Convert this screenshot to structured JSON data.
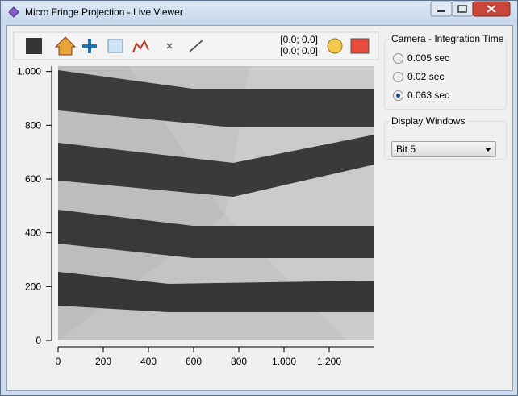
{
  "window": {
    "title": "Micro Fringe Projection - Live Viewer"
  },
  "toolbar": {
    "coords": [
      "[0.0; 0.0]",
      "[0.0; 0.0]"
    ]
  },
  "plot": {
    "xlim": [
      0,
      1400
    ],
    "ylim": [
      0,
      1020
    ],
    "xticks": [
      0,
      200,
      400,
      600,
      800,
      {
        "value": 1000,
        "label": "1.000"
      },
      {
        "value": 1200,
        "label": "1.200"
      }
    ],
    "yticks": [
      0,
      200,
      400,
      600,
      800,
      {
        "value": 1000,
        "label": "1.000"
      }
    ]
  },
  "camera_group": {
    "title": "Camera - Integration Time",
    "options": [
      "0.005 sec",
      "0.02 sec",
      "0.063 sec"
    ],
    "selected": 2
  },
  "display_group": {
    "title": "Display Windows",
    "value": "Bit 5"
  }
}
